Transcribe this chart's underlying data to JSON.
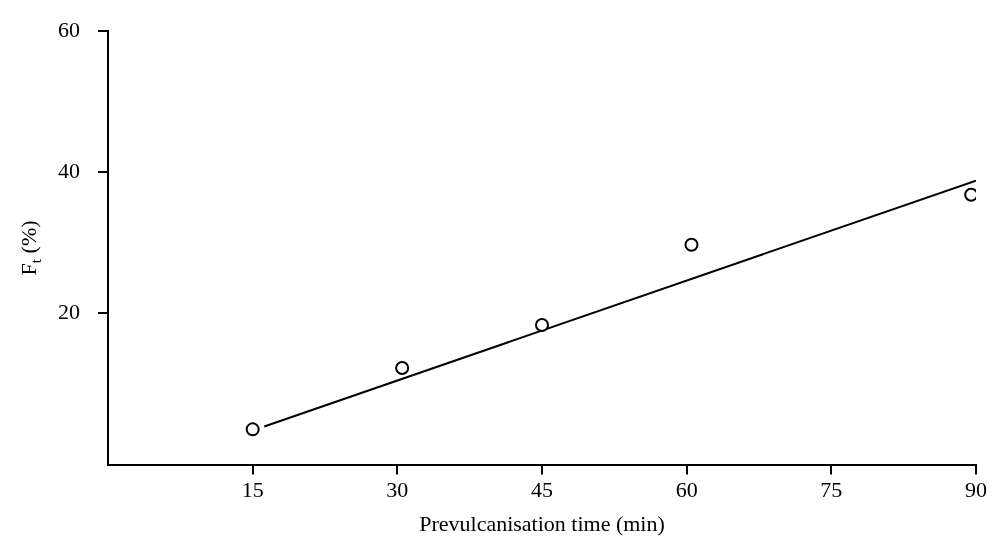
{
  "chart_data": {
    "type": "scatter",
    "xlabel": "Prevulcanisation time (min)",
    "ylabel": "F$_{t}$ (%)",
    "xlim": [
      0,
      90
    ],
    "xticks": [
      15,
      30,
      45,
      60,
      75,
      90
    ],
    "ylim": [
      -1.5,
      60
    ],
    "yticks": [
      20,
      40,
      60
    ],
    "grid": false,
    "legend": false,
    "marker": "circle",
    "series": [
      {
        "color": "#000000",
        "x": [
          15,
          30.5,
          45,
          60.5,
          89.5
        ],
        "values": [
          3.5,
          12.2,
          18.3,
          29.7,
          36.8
        ]
      },
      {
        "type": "line",
        "color": "#000000",
        "marker": "none",
        "line_style": "solid",
        "x": [
          16.2,
          90
        ],
        "values": [
          3.9,
          38.8
        ]
      }
    ]
  }
}
